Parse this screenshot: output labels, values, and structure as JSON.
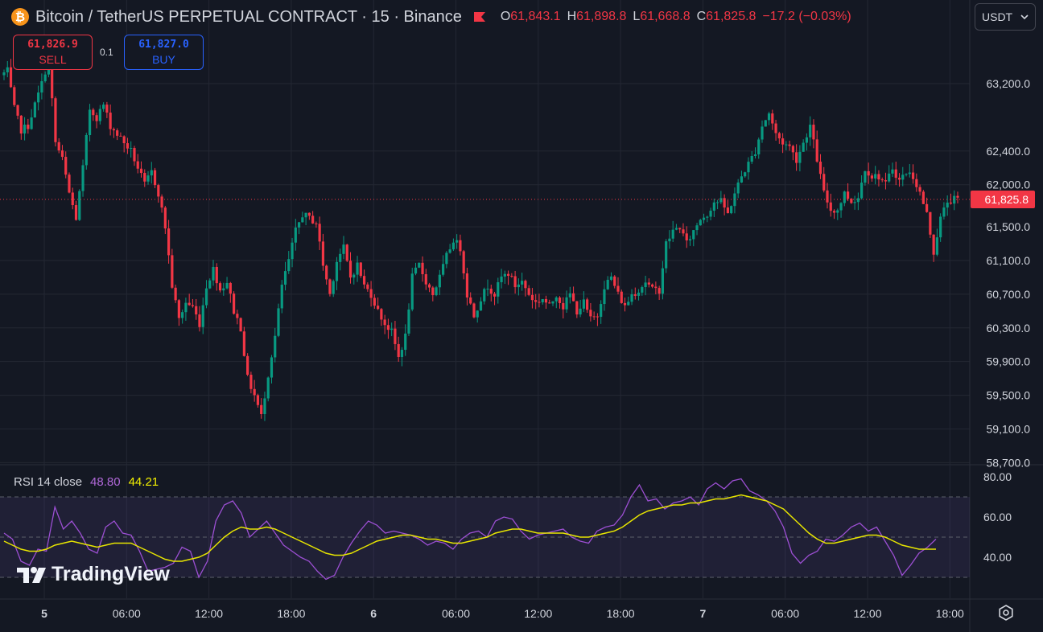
{
  "header": {
    "coin_glyph": "₿",
    "title": "Bitcoin / TetherUS PERPETUAL CONTRACT · 15 · Binance",
    "ohlc": [
      {
        "key": "O",
        "value": "61,843.1"
      },
      {
        "key": "H",
        "value": "61,898.8"
      },
      {
        "key": "L",
        "value": "61,668.8"
      },
      {
        "key": "C",
        "value": "61,825.8"
      }
    ],
    "change": "−17.2 (−0.03%)"
  },
  "currency": {
    "selected": "USDT"
  },
  "trade": {
    "sell_price": "61,826.9",
    "sell_label": "SELL",
    "quantity": "0.1",
    "buy_price": "61,827.0",
    "buy_label": "BUY"
  },
  "rsi_legend": {
    "label": "RSI 14 close",
    "rsi": "48.80",
    "ma": "44.21"
  },
  "logo": {
    "text": "TradingView",
    "mark": "TV"
  },
  "colors": {
    "up": "#089981",
    "down": "#f23645",
    "rsi_line": "#9c4fd3",
    "rsi_ma": "#e8e600",
    "background": "#141823"
  },
  "icons": {
    "settings": "gear-icon",
    "dropdown": "chevron-down-icon",
    "alert_flag": "flag-icon"
  },
  "chart_data": [
    {
      "type": "candlestick",
      "title": "Bitcoin / TetherUS PERPETUAL CONTRACT · 15 · Binance",
      "y_ticks": [
        "63,200.0",
        "62,400.0",
        "62,000.0",
        "61,500.0",
        "61,100.0",
        "60,700.0",
        "60,300.0",
        "59,900.0",
        "59,500.0",
        "59,100.0",
        "58,700.0"
      ],
      "y_tick_values": [
        63200,
        62400,
        62000,
        61500,
        61100,
        60700,
        60300,
        59900,
        59500,
        59100,
        58700
      ],
      "current_price_label": "61,825.8",
      "current_price": 61825.8,
      "x_ticks": [
        "5",
        "06:00",
        "12:00",
        "18:00",
        "6",
        "06:00",
        "12:00",
        "18:00",
        "7",
        "06:00",
        "12:00",
        "18:00"
      ],
      "x_tick_hours": [
        0,
        6,
        12,
        18,
        24,
        30,
        36,
        42,
        48,
        54,
        60,
        66
      ],
      "anchors": [
        [
          0,
          63300
        ],
        [
          0.5,
          63350
        ],
        [
          1,
          62900
        ],
        [
          1.5,
          62650
        ],
        [
          2,
          62700
        ],
        [
          2.5,
          62950
        ],
        [
          3,
          63200
        ],
        [
          3.5,
          63500
        ],
        [
          4,
          62500
        ],
        [
          4.5,
          62300
        ],
        [
          5,
          61900
        ],
        [
          5.5,
          61600
        ],
        [
          6,
          62200
        ],
        [
          6.5,
          62900
        ],
        [
          7,
          62800
        ],
        [
          7.5,
          62950
        ],
        [
          8,
          62700
        ],
        [
          8.5,
          62600
        ],
        [
          9,
          62500
        ],
        [
          9.5,
          62400
        ],
        [
          10,
          62200
        ],
        [
          10.5,
          62000
        ],
        [
          11,
          62150
        ],
        [
          11.5,
          61900
        ],
        [
          12,
          61500
        ],
        [
          12.5,
          60800
        ],
        [
          13,
          60400
        ],
        [
          13.5,
          60600
        ],
        [
          14,
          60550
        ],
        [
          14.5,
          60350
        ],
        [
          15,
          60800
        ],
        [
          15.5,
          61000
        ],
        [
          16,
          60750
        ],
        [
          16.5,
          60850
        ],
        [
          17,
          60500
        ],
        [
          17.5,
          60300
        ],
        [
          18,
          59700
        ],
        [
          18.5,
          59500
        ],
        [
          19,
          59250
        ],
        [
          19.5,
          59750
        ],
        [
          20,
          60200
        ],
        [
          20.5,
          60800
        ],
        [
          21,
          61100
        ],
        [
          21.5,
          61450
        ],
        [
          22,
          61650
        ],
        [
          22.5,
          61600
        ],
        [
          23,
          61550
        ],
        [
          23.5,
          61050
        ],
        [
          24,
          60700
        ],
        [
          24.5,
          61100
        ],
        [
          25,
          61250
        ],
        [
          25.5,
          60900
        ],
        [
          26,
          61050
        ],
        [
          26.5,
          60800
        ],
        [
          27,
          60700
        ],
        [
          27.5,
          60500
        ],
        [
          28,
          60350
        ],
        [
          28.5,
          60250
        ],
        [
          29,
          59950
        ],
        [
          29.5,
          60200
        ],
        [
          30,
          60900
        ],
        [
          30.5,
          61050
        ],
        [
          31,
          60850
        ],
        [
          31.5,
          60700
        ],
        [
          32,
          60900
        ],
        [
          32.5,
          61150
        ],
        [
          33,
          61350
        ],
        [
          33.5,
          61250
        ],
        [
          34,
          60700
        ],
        [
          34.5,
          60450
        ],
        [
          35,
          60650
        ],
        [
          35.5,
          60800
        ],
        [
          36,
          60700
        ],
        [
          36.5,
          60900
        ],
        [
          37,
          60950
        ],
        [
          37.5,
          60800
        ],
        [
          38,
          60850
        ],
        [
          38.5,
          60700
        ],
        [
          39,
          60600
        ],
        [
          39.5,
          60650
        ],
        [
          40,
          60550
        ],
        [
          40.5,
          60700
        ],
        [
          41,
          60550
        ],
        [
          41.5,
          60700
        ],
        [
          42,
          60500
        ],
        [
          42.5,
          60600
        ],
        [
          43,
          60400
        ],
        [
          43.5,
          60450
        ],
        [
          44,
          60800
        ],
        [
          44.5,
          60900
        ],
        [
          45,
          60700
        ],
        [
          45.5,
          60550
        ],
        [
          46,
          60700
        ],
        [
          46.5,
          60750
        ],
        [
          47,
          60850
        ],
        [
          47.5,
          60750
        ],
        [
          48,
          60750
        ],
        [
          48.5,
          61300
        ],
        [
          49,
          61450
        ],
        [
          49.5,
          61500
        ],
        [
          50,
          61300
        ],
        [
          50.5,
          61450
        ],
        [
          51,
          61600
        ],
        [
          51.5,
          61650
        ],
        [
          52,
          61800
        ],
        [
          52.5,
          61800
        ],
        [
          53,
          61650
        ],
        [
          53.5,
          61900
        ],
        [
          54,
          62100
        ],
        [
          54.5,
          62250
        ],
        [
          55,
          62400
        ],
        [
          55.5,
          62700
        ],
        [
          56,
          62850
        ],
        [
          56.5,
          62600
        ],
        [
          57,
          62500
        ],
        [
          57.5,
          62450
        ],
        [
          58,
          62300
        ],
        [
          58.5,
          62500
        ],
        [
          59,
          62700
        ],
        [
          59.5,
          62300
        ],
        [
          60,
          61900
        ],
        [
          60.5,
          61700
        ],
        [
          61,
          61700
        ],
        [
          61.5,
          61900
        ],
        [
          62,
          61800
        ],
        [
          62.5,
          61850
        ],
        [
          63,
          62200
        ],
        [
          63.5,
          62100
        ],
        [
          64,
          62100
        ],
        [
          64.5,
          62000
        ],
        [
          65,
          62200
        ],
        [
          65.5,
          62050
        ],
        [
          66,
          62150
        ],
        [
          66.5,
          62100
        ],
        [
          67,
          61900
        ],
        [
          67.5,
          61650
        ],
        [
          68,
          61200
        ],
        [
          68.5,
          61600
        ],
        [
          69,
          61800
        ],
        [
          69.5,
          61826
        ]
      ]
    },
    {
      "type": "line",
      "title": "RSI 14 close",
      "y_ticks": [
        "80.00",
        "60.00",
        "40.00"
      ],
      "y_tick_values": [
        80,
        60,
        40
      ],
      "ylim": [
        28,
        83
      ],
      "band": [
        30,
        70
      ],
      "midline": 50,
      "series": [
        {
          "name": "RSI",
          "values": [
            52,
            49,
            38,
            36,
            44,
            43,
            65,
            54,
            58,
            52,
            44,
            42,
            55,
            58,
            52,
            51,
            43,
            33,
            34,
            35,
            37,
            45,
            43,
            30,
            38,
            58,
            66,
            68,
            62,
            50,
            54,
            58,
            52,
            46,
            43,
            40,
            38,
            33,
            29,
            31,
            40,
            47,
            53,
            58,
            56,
            52,
            53,
            52,
            51,
            49,
            46,
            48,
            47,
            44,
            49,
            52,
            53,
            50,
            58,
            60,
            59,
            53,
            49,
            51,
            52,
            53,
            54,
            50,
            48,
            47,
            53,
            55,
            56,
            61,
            70,
            76,
            68,
            69,
            64,
            67,
            68,
            70,
            66,
            74,
            77,
            74,
            78,
            79,
            73,
            71,
            68,
            63,
            55,
            42,
            37,
            41,
            43,
            49,
            48,
            51,
            55,
            57,
            53,
            55,
            48,
            41,
            31,
            36,
            42,
            45,
            49
          ]
        },
        {
          "name": "MA",
          "values": [
            48,
            46,
            44,
            43,
            43,
            44,
            46,
            47,
            48,
            47,
            46,
            45,
            46,
            47,
            47,
            47,
            45,
            43,
            41,
            39,
            38,
            38,
            39,
            40,
            42,
            46,
            50,
            53,
            55,
            54,
            54,
            55,
            54,
            52,
            50,
            48,
            46,
            44,
            42,
            41,
            41,
            42,
            44,
            46,
            48,
            49,
            50,
            51,
            51,
            50,
            49,
            49,
            48,
            47,
            47,
            48,
            49,
            50,
            52,
            53,
            54,
            54,
            53,
            52,
            52,
            52,
            52,
            51,
            50,
            50,
            51,
            52,
            53,
            55,
            58,
            61,
            63,
            64,
            65,
            66,
            66,
            67,
            67,
            68,
            69,
            69,
            70,
            71,
            70,
            69,
            68,
            66,
            64,
            60,
            56,
            52,
            49,
            47,
            47,
            48,
            49,
            50,
            51,
            51,
            50,
            48,
            46,
            45,
            44,
            44,
            44
          ]
        }
      ]
    }
  ]
}
